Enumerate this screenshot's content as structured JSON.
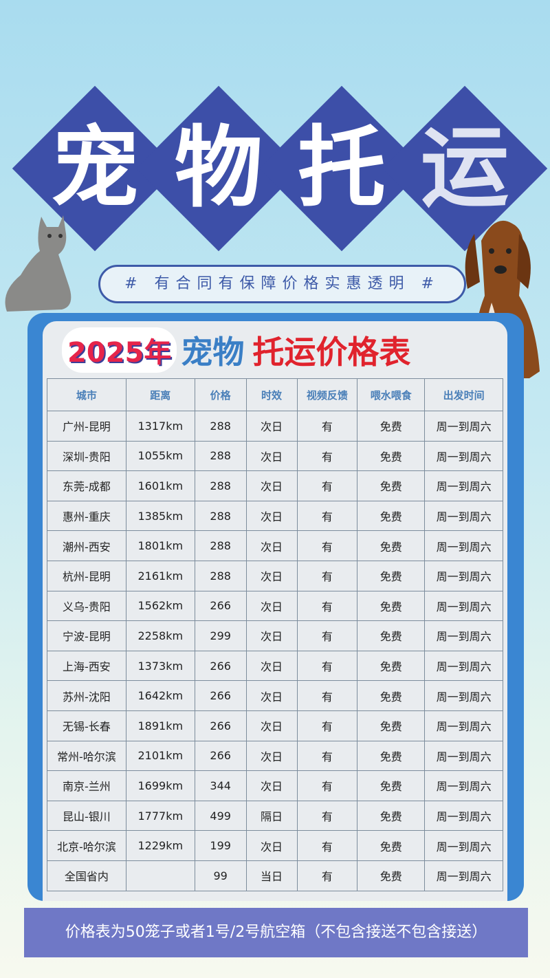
{
  "title_chars": [
    "宠",
    "物",
    "托",
    "运"
  ],
  "slogan": "# 有合同有保障价格实惠透明 #",
  "heading": {
    "year": "2025年",
    "blue": "宠物",
    "red": "托运价格表"
  },
  "table": {
    "headers": [
      "城市",
      "距离",
      "价格",
      "时效",
      "视频反馈",
      "喂水喂食",
      "出发时间"
    ],
    "rows": [
      [
        "广州-昆明",
        "1317km",
        "288",
        "次日",
        "有",
        "免费",
        "周一到周六"
      ],
      [
        "深圳-贵阳",
        "1055km",
        "288",
        "次日",
        "有",
        "免费",
        "周一到周六"
      ],
      [
        "东莞-成都",
        "1601km",
        "288",
        "次日",
        "有",
        "免费",
        "周一到周六"
      ],
      [
        "惠州-重庆",
        "1385km",
        "288",
        "次日",
        "有",
        "免费",
        "周一到周六"
      ],
      [
        "潮州-西安",
        "1801km",
        "288",
        "次日",
        "有",
        "免费",
        "周一到周六"
      ],
      [
        "杭州-昆明",
        "2161km",
        "288",
        "次日",
        "有",
        "免费",
        "周一到周六"
      ],
      [
        "义乌-贵阳",
        "1562km",
        "266",
        "次日",
        "有",
        "免费",
        "周一到周六"
      ],
      [
        "宁波-昆明",
        "2258km",
        "299",
        "次日",
        "有",
        "免费",
        "周一到周六"
      ],
      [
        "上海-西安",
        "1373km",
        "266",
        "次日",
        "有",
        "免费",
        "周一到周六"
      ],
      [
        "苏州-沈阳",
        "1642km",
        "266",
        "次日",
        "有",
        "免费",
        "周一到周六"
      ],
      [
        "无锡-长春",
        "1891km",
        "266",
        "次日",
        "有",
        "免费",
        "周一到周六"
      ],
      [
        "常州-哈尔滨",
        "2101km",
        "266",
        "次日",
        "有",
        "免费",
        "周一到周六"
      ],
      [
        "南京-兰州",
        "1699km",
        "344",
        "次日",
        "有",
        "免费",
        "周一到周六"
      ],
      [
        "昆山-银川",
        "1777km",
        "499",
        "隔日",
        "有",
        "免费",
        "周一到周六"
      ],
      [
        "北京-哈尔滨",
        "1229km",
        "199",
        "次日",
        "有",
        "免费",
        "周一到周六"
      ],
      [
        "全国省内",
        "",
        "99",
        "当日",
        "有",
        "免费",
        "周一到周六"
      ]
    ]
  },
  "footer_note": "价格表为50笼子或者1号/2号航空箱（不包含接送不包含接送）",
  "colors": {
    "diamond": "#3d4fa8",
    "panel": "#3a86d2",
    "footer": "#6f78c6",
    "heading_red": "#e0232d",
    "heading_blue": "#3a7fc6"
  }
}
